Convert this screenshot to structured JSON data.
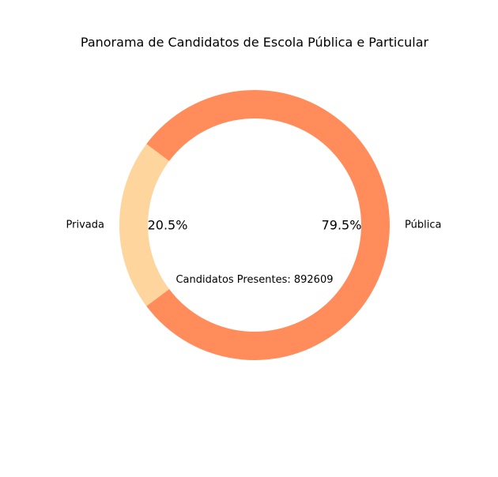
{
  "chart_data": {
    "type": "pie",
    "title": "Panorama de Candidatos de Escola Pública e Particular",
    "center_text": "Candidatos Presentes: 892609",
    "slices": [
      {
        "label": "Pública",
        "value": 79.5,
        "percent_label": "79.5%",
        "color": "#ff8c5a"
      },
      {
        "label": "Privada",
        "value": 20.5,
        "percent_label": "20.5%",
        "color": "#fed59c"
      }
    ],
    "donut": true
  }
}
